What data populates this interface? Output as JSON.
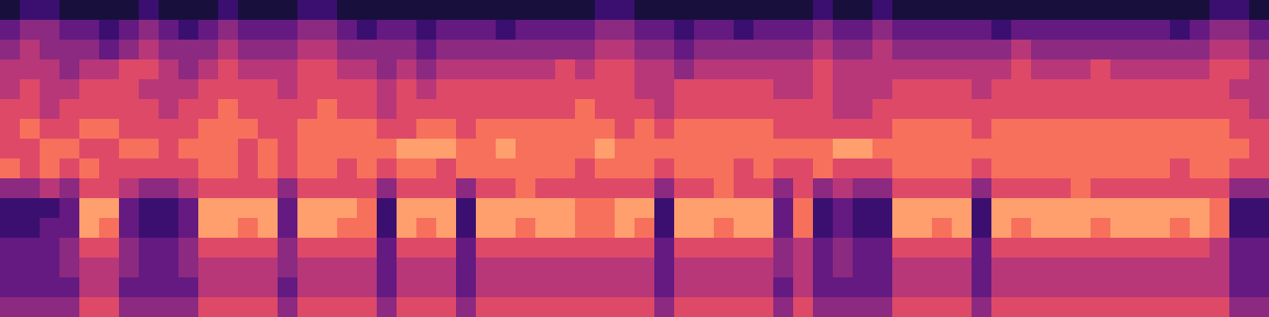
{
  "chart_data": {
    "type": "heatmap",
    "tick_labels": false,
    "color_range": [
      0,
      9
    ],
    "cells": [
      [
        1,
        2,
        2,
        1,
        1,
        1,
        1,
        2,
        1,
        1,
        1,
        2,
        1,
        1,
        1,
        2,
        2,
        1,
        1,
        1,
        1,
        1,
        1,
        1,
        1,
        1,
        1,
        1,
        1,
        1,
        2,
        2,
        1,
        1,
        1,
        1,
        1,
        1,
        1,
        1,
        1,
        2,
        1,
        1,
        2,
        1,
        1,
        1,
        1,
        1,
        1,
        1,
        1,
        1,
        1,
        1,
        1,
        1,
        1,
        1,
        1,
        2,
        2,
        1
      ],
      [
        3,
        4,
        4,
        3,
        3,
        2,
        3,
        4,
        3,
        2,
        3,
        4,
        3,
        3,
        3,
        4,
        4,
        3,
        2,
        3,
        3,
        2,
        3,
        3,
        3,
        2,
        3,
        3,
        3,
        3,
        4,
        4,
        3,
        3,
        2,
        3,
        3,
        2,
        3,
        3,
        3,
        4,
        3,
        3,
        4,
        3,
        3,
        3,
        3,
        3,
        2,
        3,
        3,
        3,
        3,
        3,
        3,
        3,
        3,
        2,
        3,
        4,
        4,
        3
      ],
      [
        4,
        5,
        4,
        4,
        4,
        3,
        4,
        5,
        4,
        4,
        4,
        5,
        4,
        4,
        4,
        5,
        5,
        4,
        4,
        4,
        4,
        3,
        4,
        4,
        4,
        4,
        4,
        4,
        4,
        4,
        5,
        5,
        4,
        4,
        3,
        4,
        4,
        4,
        4,
        4,
        4,
        5,
        4,
        4,
        5,
        4,
        4,
        4,
        4,
        4,
        4,
        5,
        4,
        4,
        4,
        4,
        4,
        4,
        4,
        4,
        4,
        5,
        5,
        4
      ],
      [
        5,
        5,
        5,
        4,
        5,
        5,
        6,
        6,
        5,
        4,
        5,
        6,
        5,
        5,
        5,
        6,
        6,
        5,
        5,
        4,
        5,
        4,
        5,
        5,
        5,
        5,
        5,
        5,
        6,
        5,
        6,
        6,
        5,
        5,
        4,
        5,
        5,
        5,
        5,
        5,
        5,
        6,
        5,
        5,
        5,
        5,
        5,
        5,
        5,
        5,
        5,
        6,
        5,
        5,
        5,
        6,
        5,
        5,
        5,
        5,
        5,
        6,
        6,
        5
      ],
      [
        5,
        6,
        5,
        5,
        6,
        6,
        6,
        5,
        5,
        5,
        6,
        6,
        6,
        6,
        5,
        6,
        6,
        6,
        6,
        5,
        6,
        5,
        6,
        6,
        6,
        6,
        6,
        6,
        6,
        6,
        6,
        6,
        5,
        5,
        6,
        6,
        6,
        6,
        6,
        5,
        5,
        6,
        5,
        5,
        5,
        6,
        6,
        6,
        6,
        5,
        6,
        6,
        6,
        6,
        6,
        6,
        6,
        6,
        6,
        6,
        6,
        6,
        5,
        5
      ],
      [
        6,
        6,
        5,
        6,
        6,
        6,
        6,
        6,
        5,
        6,
        6,
        7,
        6,
        6,
        6,
        6,
        7,
        6,
        6,
        5,
        6,
        6,
        6,
        6,
        6,
        6,
        6,
        6,
        6,
        7,
        6,
        6,
        6,
        5,
        6,
        6,
        6,
        6,
        6,
        6,
        6,
        6,
        5,
        5,
        6,
        6,
        6,
        6,
        6,
        6,
        6,
        6,
        6,
        6,
        6,
        6,
        6,
        6,
        6,
        6,
        6,
        6,
        6,
        5
      ],
      [
        6,
        7,
        6,
        6,
        7,
        7,
        6,
        6,
        6,
        6,
        7,
        7,
        7,
        6,
        6,
        7,
        7,
        7,
        7,
        6,
        6,
        7,
        7,
        6,
        7,
        7,
        7,
        7,
        7,
        7,
        7,
        6,
        7,
        6,
        7,
        7,
        7,
        7,
        7,
        6,
        6,
        6,
        6,
        6,
        6,
        7,
        7,
        7,
        7,
        6,
        7,
        7,
        7,
        7,
        7,
        7,
        7,
        7,
        7,
        7,
        7,
        7,
        6,
        6
      ],
      [
        6,
        6,
        7,
        7,
        6,
        6,
        7,
        7,
        6,
        7,
        7,
        7,
        6,
        7,
        6,
        7,
        7,
        7,
        7,
        7,
        8,
        8,
        8,
        7,
        7,
        8,
        7,
        7,
        7,
        7,
        8,
        7,
        7,
        7,
        7,
        7,
        7,
        7,
        7,
        7,
        7,
        7,
        8,
        8,
        7,
        7,
        7,
        7,
        7,
        7,
        7,
        7,
        7,
        7,
        7,
        7,
        7,
        7,
        7,
        7,
        7,
        7,
        7,
        6
      ],
      [
        7,
        6,
        7,
        6,
        7,
        6,
        6,
        6,
        6,
        6,
        7,
        7,
        6,
        7,
        6,
        7,
        7,
        6,
        7,
        6,
        7,
        7,
        6,
        7,
        7,
        7,
        7,
        7,
        7,
        6,
        7,
        7,
        7,
        6,
        7,
        7,
        7,
        6,
        7,
        6,
        6,
        7,
        6,
        6,
        6,
        7,
        7,
        7,
        7,
        6,
        7,
        7,
        7,
        7,
        7,
        7,
        7,
        7,
        7,
        6,
        7,
        7,
        6,
        6
      ],
      [
        4,
        4,
        5,
        4,
        6,
        6,
        5,
        4,
        4,
        5,
        6,
        6,
        6,
        6,
        4,
        6,
        6,
        6,
        6,
        4,
        6,
        6,
        6,
        4,
        6,
        6,
        7,
        6,
        6,
        6,
        6,
        6,
        6,
        4,
        6,
        6,
        7,
        6,
        6,
        4,
        6,
        4,
        5,
        4,
        4,
        6,
        6,
        6,
        6,
        4,
        6,
        6,
        6,
        6,
        7,
        6,
        6,
        6,
        6,
        6,
        6,
        6,
        4,
        4
      ],
      [
        2,
        2,
        2,
        3,
        8,
        8,
        3,
        2,
        2,
        3,
        8,
        8,
        8,
        8,
        3,
        8,
        8,
        8,
        7,
        2,
        8,
        8,
        8,
        2,
        8,
        8,
        8,
        8,
        8,
        7,
        7,
        8,
        8,
        2,
        8,
        8,
        8,
        8,
        8,
        3,
        7,
        2,
        3,
        2,
        2,
        8,
        8,
        8,
        8,
        2,
        8,
        8,
        8,
        8,
        8,
        8,
        8,
        8,
        8,
        8,
        8,
        7,
        2,
        2
      ],
      [
        2,
        2,
        3,
        3,
        8,
        7,
        3,
        2,
        2,
        3,
        8,
        8,
        7,
        8,
        3,
        8,
        8,
        7,
        7,
        2,
        8,
        7,
        8,
        2,
        8,
        8,
        7,
        8,
        8,
        7,
        7,
        8,
        7,
        2,
        8,
        8,
        7,
        8,
        8,
        3,
        7,
        2,
        3,
        2,
        2,
        8,
        8,
        7,
        8,
        2,
        8,
        7,
        8,
        8,
        8,
        7,
        8,
        8,
        8,
        7,
        8,
        7,
        2,
        2
      ],
      [
        3,
        3,
        3,
        4,
        6,
        6,
        4,
        3,
        3,
        4,
        6,
        6,
        6,
        6,
        4,
        6,
        6,
        6,
        6,
        3,
        6,
        6,
        6,
        3,
        6,
        6,
        6,
        6,
        6,
        6,
        6,
        6,
        6,
        3,
        6,
        6,
        6,
        6,
        6,
        4,
        5,
        3,
        4,
        3,
        3,
        6,
        6,
        6,
        6,
        3,
        6,
        6,
        6,
        6,
        6,
        6,
        6,
        6,
        6,
        6,
        6,
        5,
        3,
        3
      ],
      [
        3,
        3,
        3,
        4,
        5,
        5,
        4,
        3,
        3,
        4,
        5,
        5,
        5,
        5,
        4,
        5,
        5,
        5,
        5,
        3,
        5,
        5,
        5,
        3,
        5,
        5,
        5,
        5,
        5,
        5,
        5,
        5,
        5,
        3,
        5,
        5,
        5,
        5,
        5,
        4,
        5,
        3,
        4,
        3,
        3,
        5,
        5,
        5,
        5,
        3,
        5,
        5,
        5,
        5,
        5,
        5,
        5,
        5,
        5,
        5,
        5,
        5,
        3,
        3
      ],
      [
        3,
        3,
        3,
        3,
        5,
        5,
        3,
        3,
        3,
        3,
        5,
        5,
        5,
        5,
        3,
        5,
        5,
        5,
        5,
        3,
        5,
        5,
        5,
        3,
        5,
        5,
        5,
        5,
        5,
        5,
        5,
        5,
        5,
        3,
        5,
        5,
        5,
        5,
        5,
        3,
        5,
        3,
        3,
        3,
        3,
        5,
        5,
        5,
        5,
        3,
        5,
        5,
        5,
        5,
        5,
        5,
        5,
        5,
        5,
        5,
        5,
        5,
        3,
        3
      ],
      [
        4,
        4,
        4,
        4,
        6,
        6,
        4,
        4,
        4,
        4,
        6,
        6,
        6,
        6,
        4,
        6,
        6,
        6,
        6,
        4,
        6,
        6,
        6,
        4,
        6,
        6,
        6,
        6,
        6,
        6,
        6,
        6,
        6,
        4,
        6,
        6,
        6,
        6,
        6,
        4,
        6,
        4,
        4,
        4,
        4,
        6,
        6,
        6,
        6,
        4,
        6,
        6,
        6,
        6,
        6,
        6,
        6,
        6,
        6,
        6,
        6,
        6,
        4,
        4
      ]
    ]
  }
}
